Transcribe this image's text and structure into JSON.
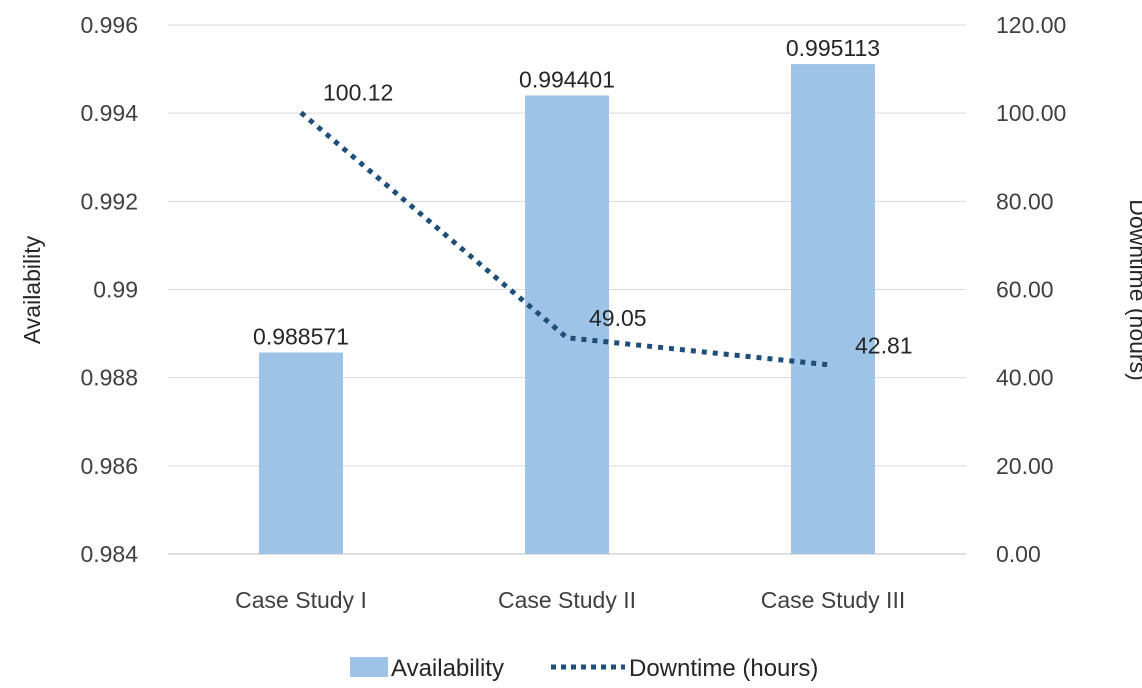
{
  "chart_data": {
    "type": "bar",
    "categories": [
      "Case Study I",
      "Case Study II",
      "Case Study III"
    ],
    "series": [
      {
        "name": "Availability",
        "type": "bar",
        "axis": "left",
        "values": [
          0.988571,
          0.994401,
          0.995113
        ],
        "labels": [
          "0.988571",
          "0.994401",
          "0.995113"
        ],
        "color": "#9dc3e6"
      },
      {
        "name": "Downtime (hours)",
        "type": "line",
        "style": "dotted",
        "axis": "right",
        "values": [
          100.12,
          49.05,
          42.81
        ],
        "labels": [
          "100.12",
          "49.05",
          "42.81"
        ],
        "color": "#1f4e79"
      }
    ],
    "ylabel": "Availability",
    "y2label": "Downtime (hours)",
    "ylim": [
      0.984,
      0.996
    ],
    "y2lim": [
      0,
      120
    ],
    "yticks": [
      "0.984",
      "0.986",
      "0.988",
      "0.99",
      "0.992",
      "0.994",
      "0.996"
    ],
    "y2ticks": [
      "0.00",
      "20.00",
      "40.00",
      "60.00",
      "80.00",
      "100.00",
      "120.00"
    ],
    "grid": true,
    "legend": "bottom"
  }
}
